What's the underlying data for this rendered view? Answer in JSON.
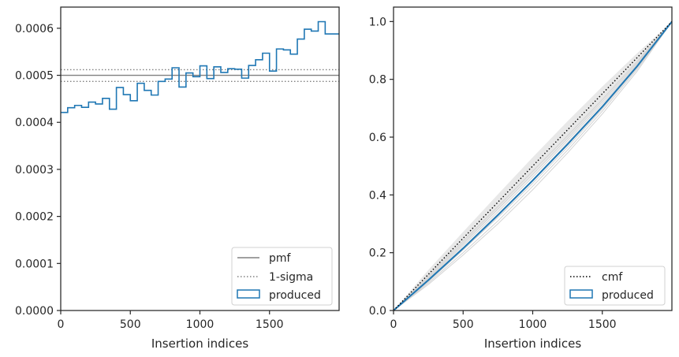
{
  "colors": {
    "produced": "#1f77b4",
    "pmf": "#808080",
    "sigma": "#808080",
    "cmf": "#000000",
    "samples": "#d3d3d3",
    "band": "#e6e6e6",
    "axes": "#262626"
  },
  "chart_data": [
    {
      "type": "step",
      "xlabel": "Insertion indices",
      "ylabel": "",
      "xlim": [
        0,
        2000
      ],
      "ylim": [
        0,
        0.000645
      ],
      "x_ticks": [
        0,
        500,
        1000,
        1500
      ],
      "x_tick_labels": [
        "0",
        "500",
        "1000",
        "1500"
      ],
      "y_ticks": [
        0,
        0.0001,
        0.0002,
        0.0003,
        0.0004,
        0.0005,
        0.0006
      ],
      "y_tick_labels": [
        "0.0000",
        "0.0001",
        "0.0002",
        "0.0003",
        "0.0004",
        "0.0005",
        "0.0006"
      ],
      "bin_edges": [
        0,
        50,
        100,
        150,
        200,
        250,
        300,
        350,
        400,
        450,
        500,
        550,
        600,
        650,
        700,
        750,
        800,
        850,
        900,
        950,
        1000,
        1050,
        1100,
        1150,
        1200,
        1250,
        1300,
        1350,
        1400,
        1450,
        1500,
        1550,
        1600,
        1650,
        1700,
        1750,
        1800,
        1850,
        1900,
        1950,
        2000
      ],
      "series": [
        {
          "name": "produced",
          "values": [
            0.000421,
            0.000431,
            0.000436,
            0.000432,
            0.000443,
            0.000439,
            0.000451,
            0.000428,
            0.000474,
            0.000459,
            0.000446,
            0.000483,
            0.000468,
            0.000458,
            0.000487,
            0.000492,
            0.000516,
            0.000475,
            0.000505,
            0.000497,
            0.00052,
            0.000493,
            0.000518,
            0.000506,
            0.000514,
            0.000513,
            0.000494,
            0.000521,
            0.000533,
            0.000547,
            0.000509,
            0.000556,
            0.000554,
            0.000545,
            0.000577,
            0.000598,
            0.000594,
            0.000614,
            0.000588,
            0.000588
          ]
        }
      ],
      "reference_lines": [
        {
          "name": "pmf",
          "y": 0.0005,
          "style": "solid"
        },
        {
          "name": "1-sigma",
          "y": [
            0.000487,
            0.000512
          ],
          "style": "dotted"
        }
      ],
      "legend": {
        "placement": "lower-right",
        "entries": [
          "pmf",
          "1-sigma",
          "produced"
        ]
      }
    },
    {
      "type": "line",
      "xlabel": "Insertion indices",
      "ylabel": "",
      "xlim": [
        0,
        2000
      ],
      "ylim": [
        0,
        1.05
      ],
      "x_ticks": [
        0,
        500,
        1000,
        1500
      ],
      "x_tick_labels": [
        "0",
        "500",
        "1000",
        "1500"
      ],
      "y_ticks": [
        0,
        0.2,
        0.4,
        0.6,
        0.8,
        1.0
      ],
      "y_tick_labels": [
        "0.0",
        "0.2",
        "0.4",
        "0.6",
        "0.8",
        "1.0"
      ],
      "cmf": {
        "name": "cmf",
        "x": [
          0,
          2000
        ],
        "y": [
          0,
          1.0
        ],
        "style": "dotted"
      },
      "produced": {
        "name": "produced",
        "x": [
          0,
          250,
          500,
          750,
          1000,
          1250,
          1500,
          1750,
          2000
        ],
        "y": [
          0,
          0.105,
          0.215,
          0.33,
          0.45,
          0.575,
          0.705,
          0.845,
          1.0
        ]
      },
      "samples": [
        {
          "x": [
            0,
            250,
            500,
            750,
            1000,
            1250,
            1500,
            1750,
            2000
          ],
          "y": [
            0,
            0.095,
            0.2,
            0.31,
            0.43,
            0.555,
            0.69,
            0.835,
            1.0
          ]
        },
        {
          "x": [
            0,
            250,
            500,
            750,
            1000,
            1250,
            1500,
            1750,
            2000
          ],
          "y": [
            0,
            0.115,
            0.232,
            0.35,
            0.47,
            0.595,
            0.722,
            0.857,
            1.0
          ]
        },
        {
          "x": [
            0,
            250,
            500,
            750,
            1000,
            1250,
            1500,
            1750,
            2000
          ],
          "y": [
            0,
            0.1,
            0.21,
            0.322,
            0.44,
            0.565,
            0.698,
            0.84,
            1.0
          ]
        },
        {
          "x": [
            0,
            250,
            500,
            750,
            1000,
            1250,
            1500,
            1750,
            2000
          ],
          "y": [
            0,
            0.11,
            0.225,
            0.342,
            0.462,
            0.588,
            0.715,
            0.852,
            1.0
          ]
        },
        {
          "x": [
            0,
            250,
            500,
            750,
            1000,
            1250,
            1500,
            1750,
            2000
          ],
          "y": [
            0,
            0.09,
            0.192,
            0.3,
            0.418,
            0.545,
            0.68,
            0.828,
            1.0
          ]
        },
        {
          "x": [
            0,
            250,
            500,
            750,
            1000,
            1250,
            1500,
            1750,
            2000
          ],
          "y": [
            0,
            0.12,
            0.24,
            0.36,
            0.482,
            0.605,
            0.73,
            0.862,
            1.0
          ]
        },
        {
          "x": [
            0,
            250,
            500,
            750,
            1000,
            1250,
            1500,
            1750,
            2000
          ],
          "y": [
            0,
            0.107,
            0.218,
            0.334,
            0.452,
            0.58,
            0.708,
            0.848,
            1.0
          ]
        }
      ],
      "band": {
        "x": [
          0,
          250,
          500,
          750,
          1000,
          1250,
          1500,
          1750,
          2000
        ],
        "lower": [
          0,
          0.11,
          0.228,
          0.348,
          0.47,
          0.595,
          0.725,
          0.86,
          1.0
        ],
        "upper": [
          0,
          0.14,
          0.272,
          0.402,
          0.53,
          0.655,
          0.775,
          0.89,
          1.0
        ]
      },
      "legend": {
        "placement": "lower-right",
        "entries": [
          "cmf",
          "produced"
        ]
      }
    }
  ]
}
